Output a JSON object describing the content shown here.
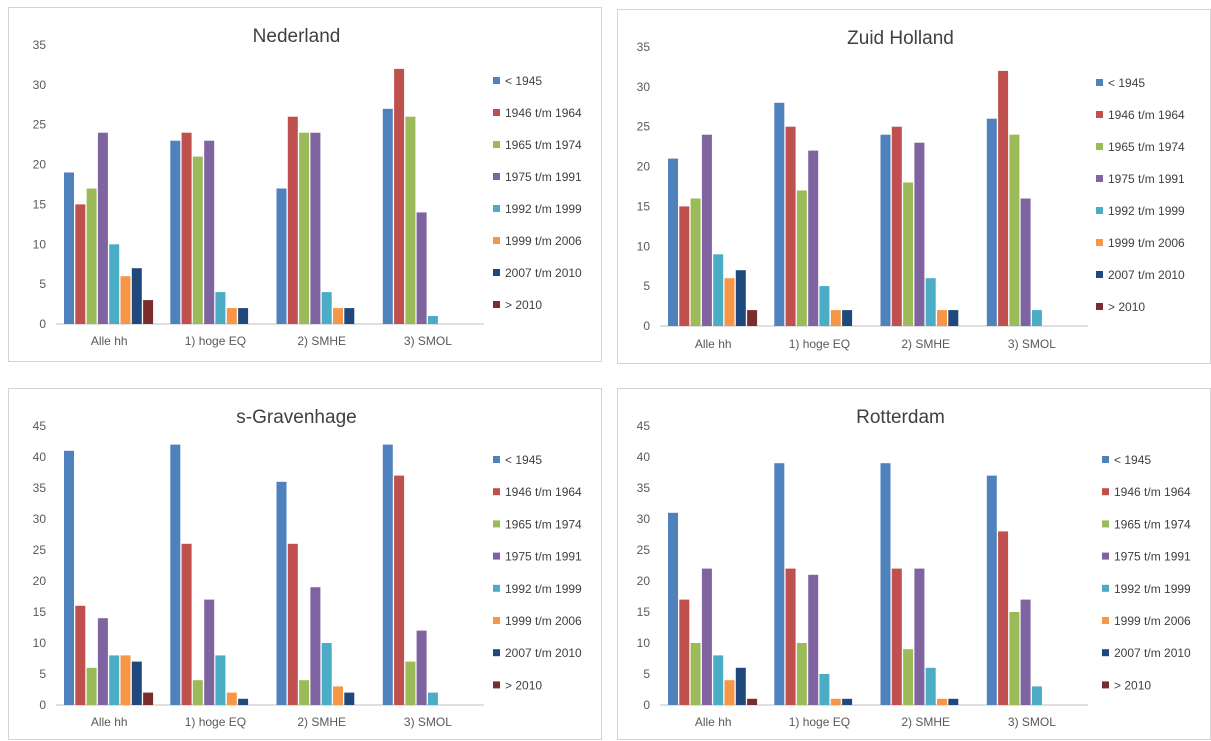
{
  "colors": [
    "#4f81bd",
    "#c0504d",
    "#9bbb59",
    "#8064a2",
    "#4bacc6",
    "#f79646",
    "#1f497d",
    "#7b2c2c"
  ],
  "chart_data": [
    {
      "type": "bar",
      "title": "Nederland",
      "categories": [
        "Alle hh",
        "1) hoge EQ",
        "2) SMHE",
        "3) SMOL"
      ],
      "ylim": [
        0,
        35
      ],
      "yticks": [
        0,
        5,
        10,
        15,
        20,
        25,
        30,
        35
      ],
      "grid": false,
      "legend": "right",
      "series": [
        {
          "name": "< 1945",
          "values": [
            19,
            23,
            17,
            27
          ]
        },
        {
          "name": "1946 t/m 1964",
          "values": [
            15,
            24,
            26,
            32
          ]
        },
        {
          "name": "1965 t/m 1974",
          "values": [
            17,
            21,
            24,
            26
          ]
        },
        {
          "name": "1975 t/m 1991",
          "values": [
            24,
            23,
            24,
            14
          ]
        },
        {
          "name": "1992 t/m 1999",
          "values": [
            10,
            4,
            4,
            1
          ]
        },
        {
          "name": "1999 t/m 2006",
          "values": [
            6,
            2,
            2,
            0
          ]
        },
        {
          "name": "2007 t/m 2010",
          "values": [
            7,
            2,
            2,
            0
          ]
        },
        {
          "name": "> 2010",
          "values": [
            3,
            0,
            0,
            0
          ]
        }
      ]
    },
    {
      "type": "bar",
      "title": "Zuid Holland",
      "categories": [
        "Alle hh",
        "1) hoge EQ",
        "2) SMHE",
        "3) SMOL"
      ],
      "ylim": [
        0,
        35
      ],
      "yticks": [
        0,
        5,
        10,
        15,
        20,
        25,
        30,
        35
      ],
      "grid": false,
      "legend": "right",
      "series": [
        {
          "name": "< 1945",
          "values": [
            21,
            28,
            24,
            26
          ]
        },
        {
          "name": "1946 t/m 1964",
          "values": [
            15,
            25,
            25,
            32
          ]
        },
        {
          "name": "1965 t/m 1974",
          "values": [
            16,
            17,
            18,
            24
          ]
        },
        {
          "name": "1975 t/m 1991",
          "values": [
            24,
            22,
            23,
            16
          ]
        },
        {
          "name": "1992 t/m 1999",
          "values": [
            9,
            5,
            6,
            2
          ]
        },
        {
          "name": "1999 t/m 2006",
          "values": [
            6,
            2,
            2,
            0
          ]
        },
        {
          "name": "2007 t/m 2010",
          "values": [
            7,
            2,
            2,
            0
          ]
        },
        {
          "name": "> 2010",
          "values": [
            2,
            0,
            0,
            0
          ]
        }
      ]
    },
    {
      "type": "bar",
      "title": "s-Gravenhage",
      "categories": [
        "Alle hh",
        "1) hoge EQ",
        "2) SMHE",
        "3) SMOL"
      ],
      "ylim": [
        0,
        45
      ],
      "yticks": [
        0,
        5,
        10,
        15,
        20,
        25,
        30,
        35,
        40,
        45
      ],
      "grid": false,
      "legend": "right",
      "series": [
        {
          "name": "< 1945",
          "values": [
            41,
            42,
            36,
            42
          ]
        },
        {
          "name": "1946 t/m 1964",
          "values": [
            16,
            26,
            26,
            37
          ]
        },
        {
          "name": "1965 t/m 1974",
          "values": [
            6,
            4,
            4,
            7
          ]
        },
        {
          "name": "1975 t/m 1991",
          "values": [
            14,
            17,
            19,
            12
          ]
        },
        {
          "name": "1992 t/m 1999",
          "values": [
            8,
            8,
            10,
            2
          ]
        },
        {
          "name": "1999 t/m 2006",
          "values": [
            8,
            2,
            3,
            0
          ]
        },
        {
          "name": "2007 t/m 2010",
          "values": [
            7,
            1,
            2,
            0
          ]
        },
        {
          "name": "> 2010",
          "values": [
            2,
            0,
            0,
            0
          ]
        }
      ]
    },
    {
      "type": "bar",
      "title": "Rotterdam",
      "categories": [
        "Alle hh",
        "1) hoge EQ",
        "2) SMHE",
        "3) SMOL"
      ],
      "ylim": [
        0,
        45
      ],
      "yticks": [
        0,
        5,
        10,
        15,
        20,
        25,
        30,
        35,
        40,
        45
      ],
      "grid": false,
      "legend": "right",
      "series": [
        {
          "name": "< 1945",
          "values": [
            31,
            39,
            39,
            37
          ]
        },
        {
          "name": "1946 t/m 1964",
          "values": [
            17,
            22,
            22,
            28
          ]
        },
        {
          "name": "1965 t/m 1974",
          "values": [
            10,
            10,
            9,
            15
          ]
        },
        {
          "name": "1975 t/m 1991",
          "values": [
            22,
            21,
            22,
            17
          ]
        },
        {
          "name": "1992 t/m 1999",
          "values": [
            8,
            5,
            6,
            3
          ]
        },
        {
          "name": "1999 t/m 2006",
          "values": [
            4,
            1,
            1,
            0
          ]
        },
        {
          "name": "2007 t/m 2010",
          "values": [
            6,
            1,
            1,
            0
          ]
        },
        {
          "name": "> 2010",
          "values": [
            1,
            0,
            0,
            0
          ]
        }
      ]
    }
  ]
}
